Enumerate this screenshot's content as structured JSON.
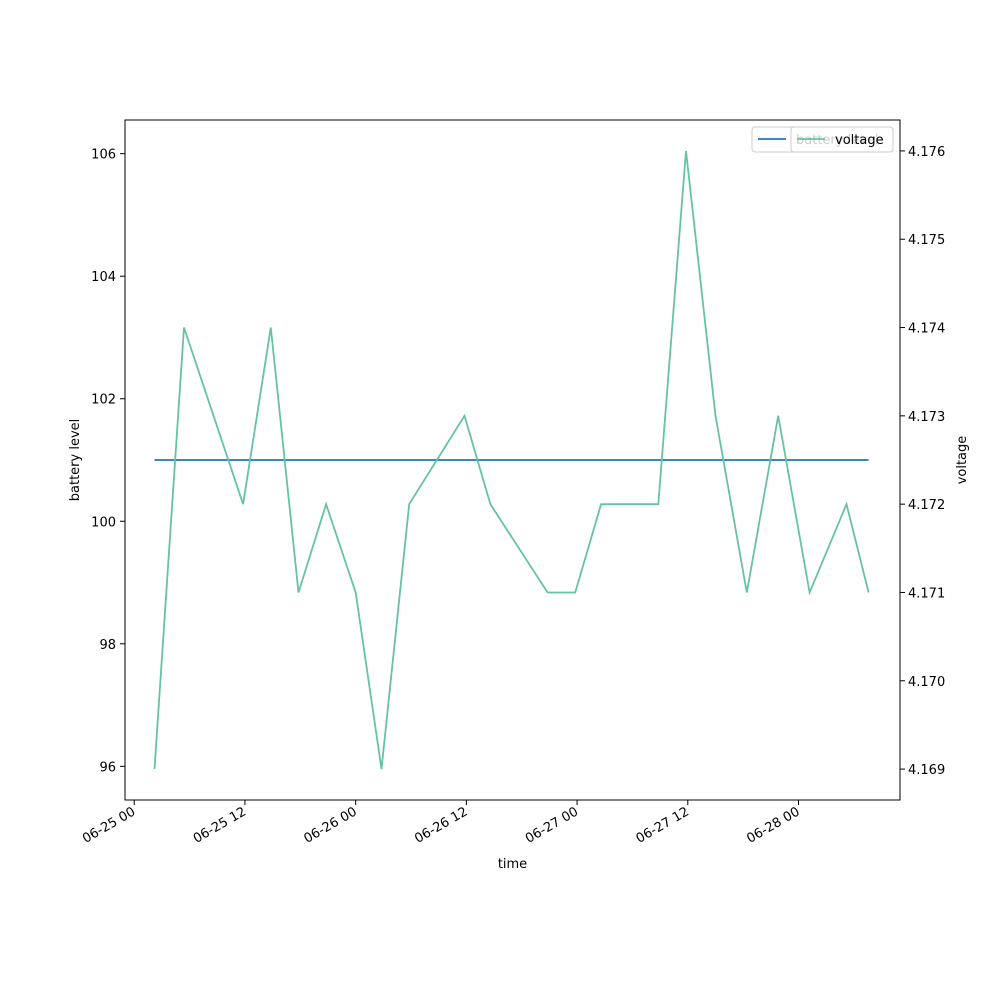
{
  "chart_data": {
    "type": "line",
    "xlabel": "time",
    "ylabel_left": "battery level",
    "ylabel_right": "voltage",
    "x_range": [
      "2025-06-24T23:00",
      "2025-06-28T11:00"
    ],
    "x_ticks": [
      {
        "t": "2025-06-25T00:00",
        "label": "06-25 00"
      },
      {
        "t": "2025-06-25T12:00",
        "label": "06-25 12"
      },
      {
        "t": "2025-06-26T00:00",
        "label": "06-26 00"
      },
      {
        "t": "2025-06-26T12:00",
        "label": "06-26 12"
      },
      {
        "t": "2025-06-27T00:00",
        "label": "06-27 00"
      },
      {
        "t": "2025-06-27T12:00",
        "label": "06-27 12"
      },
      {
        "t": "2025-06-28T00:00",
        "label": "06-28 00"
      }
    ],
    "ylim_left": [
      95.45,
      106.55
    ],
    "ylim_right": [
      4.16865,
      4.17635
    ],
    "yticks_left": [
      96,
      98,
      100,
      102,
      104,
      106
    ],
    "yticks_right": [
      "4.169",
      "4.170",
      "4.171",
      "4.172",
      "4.173",
      "4.174",
      "4.175",
      "4.176"
    ],
    "series": [
      {
        "name": "battery level",
        "axis": "left",
        "color": "#1f77b4",
        "points": [
          [
            "2025-06-25T02:12",
            101
          ],
          [
            "2025-06-28T07:36",
            101
          ]
        ]
      },
      {
        "name": "voltage",
        "axis": "right",
        "color": "#66c2a5",
        "points": [
          [
            "2025-06-25T02:12",
            4.169
          ],
          [
            "2025-06-25T05:24",
            4.174
          ],
          [
            "2025-06-25T11:48",
            4.172
          ],
          [
            "2025-06-25T14:48",
            4.174
          ],
          [
            "2025-06-25T17:48",
            4.171
          ],
          [
            "2025-06-25T20:48",
            4.172
          ],
          [
            "2025-06-26T00:00",
            4.171
          ],
          [
            "2025-06-26T02:48",
            4.169
          ],
          [
            "2025-06-26T05:48",
            4.172
          ],
          [
            "2025-06-26T11:48",
            4.173
          ],
          [
            "2025-06-26T14:36",
            4.172
          ],
          [
            "2025-06-26T20:48",
            4.171
          ],
          [
            "2025-06-26T23:48",
            4.171
          ],
          [
            "2025-06-27T02:36",
            4.172
          ],
          [
            "2025-06-27T08:48",
            4.172
          ],
          [
            "2025-06-27T11:48",
            4.176
          ],
          [
            "2025-06-27T15:00",
            4.173
          ],
          [
            "2025-06-27T18:24",
            4.171
          ],
          [
            "2025-06-27T21:48",
            4.173
          ],
          [
            "2025-06-28T01:12",
            4.171
          ],
          [
            "2025-06-28T05:12",
            4.172
          ],
          [
            "2025-06-28T07:36",
            4.171
          ]
        ]
      }
    ],
    "legends": [
      {
        "position": "upper-right",
        "entries": [
          {
            "label": "battery level",
            "color": "#1f77b4"
          }
        ]
      },
      {
        "position": "upper-right",
        "entries": [
          {
            "label": "voltage",
            "color": "#66c2a5"
          }
        ]
      }
    ]
  }
}
